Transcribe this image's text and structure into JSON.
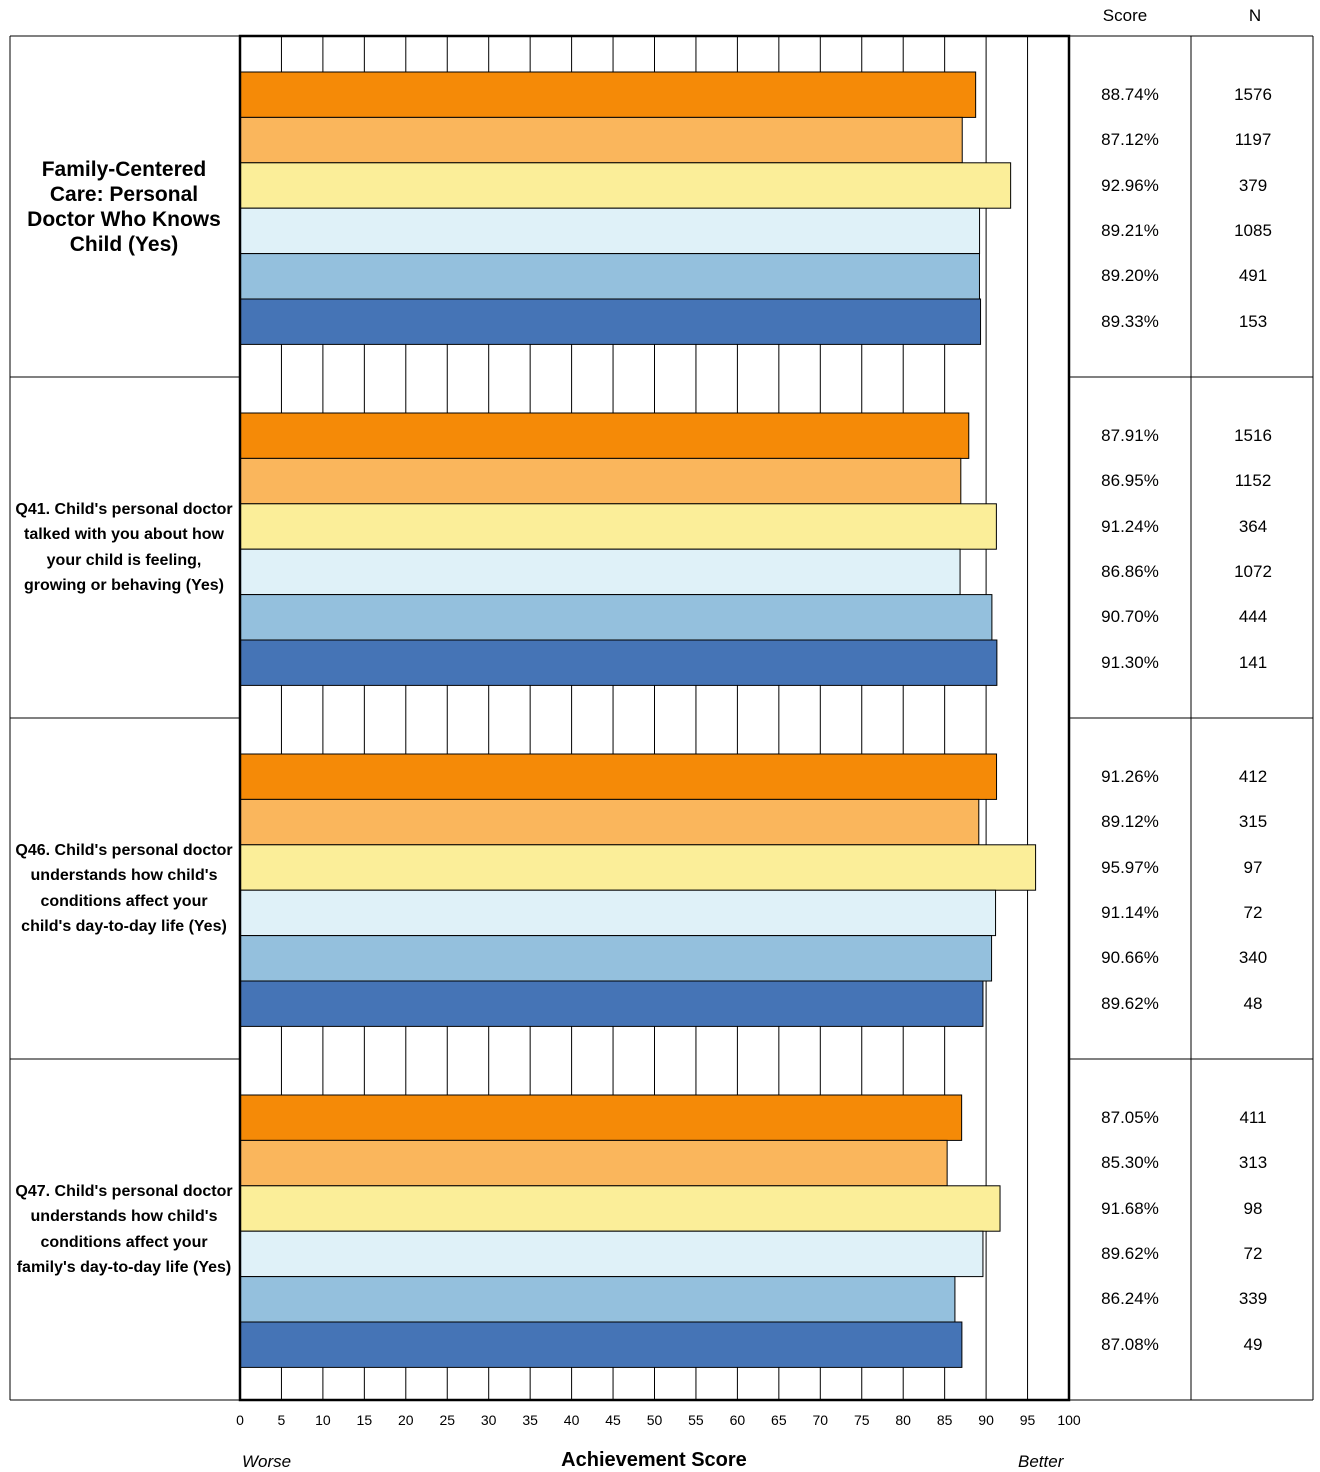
{
  "headers": {
    "score": "Score",
    "n": "N"
  },
  "footer": {
    "worse": "Worse",
    "xlabel": "Achievement Score",
    "better": "Better"
  },
  "colors": {
    "series": [
      "#F58A07",
      "#FAB65C",
      "#FBEE99",
      "#DFF1F8",
      "#94C0DD",
      "#4574B6"
    ],
    "outline": "#000000"
  },
  "chart_data": {
    "type": "bar",
    "orientation": "horizontal",
    "xlabel": "Achievement Score",
    "xlim": [
      0,
      100
    ],
    "xticks": [
      0,
      5,
      10,
      15,
      20,
      25,
      30,
      35,
      40,
      45,
      50,
      55,
      60,
      65,
      70,
      75,
      80,
      85,
      90,
      95,
      100
    ],
    "grid": true,
    "groups": [
      {
        "label": "Family-Centered Care: Personal Doctor Who Knows Child (Yes)",
        "values": [
          88.74,
          87.12,
          92.96,
          89.21,
          89.2,
          89.33
        ],
        "score_labels": [
          "88.74%",
          "87.12%",
          "92.96%",
          "89.21%",
          "89.20%",
          "89.33%"
        ],
        "n": [
          "1576",
          "1197",
          "379",
          "1085",
          "491",
          "153"
        ]
      },
      {
        "label": "Q41. Child's personal doctor talked with you about how your child is feeling, growing or behaving (Yes)",
        "values": [
          87.91,
          86.95,
          91.24,
          86.86,
          90.7,
          91.3
        ],
        "score_labels": [
          "87.91%",
          "86.95%",
          "91.24%",
          "86.86%",
          "90.70%",
          "91.30%"
        ],
        "n": [
          "1516",
          "1152",
          "364",
          "1072",
          "444",
          "141"
        ]
      },
      {
        "label": "Q46. Child's personal doctor understands how child's conditions affect your child's day-to-day life (Yes)",
        "values": [
          91.26,
          89.12,
          95.97,
          91.14,
          90.66,
          89.62
        ],
        "score_labels": [
          "91.26%",
          "89.12%",
          "95.97%",
          "91.14%",
          "90.66%",
          "89.62%"
        ],
        "n": [
          "412",
          "315",
          "97",
          "72",
          "340",
          "48"
        ]
      },
      {
        "label": "Q47. Child's personal doctor understands how child's conditions affect your family's day-to-day life (Yes)",
        "values": [
          87.05,
          85.3,
          91.68,
          89.62,
          86.24,
          87.08
        ],
        "score_labels": [
          "87.05%",
          "85.30%",
          "91.68%",
          "89.62%",
          "86.24%",
          "87.08%"
        ],
        "n": [
          "411",
          "313",
          "98",
          "72",
          "339",
          "49"
        ]
      }
    ]
  }
}
